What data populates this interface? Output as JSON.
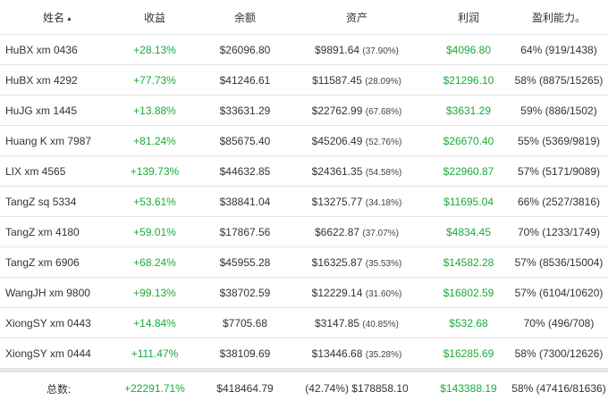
{
  "header": {
    "name": "姓名",
    "sort_icon": "▲",
    "gain": "收益",
    "balance": "余额",
    "asset": "资产",
    "profit": "利润",
    "ratio": "盈利能力。"
  },
  "rows": [
    {
      "name": "HuBX xm 0436",
      "gain": "+28.13%",
      "balance": "$26096.80",
      "asset": "$9891.64",
      "asset_pct": "(37.90%)",
      "profit": "$4096.80",
      "ratio": "64% (919/1438)"
    },
    {
      "name": "HuBX xm 4292",
      "gain": "+77.73%",
      "balance": "$41246.61",
      "asset": "$11587.45",
      "asset_pct": "(28.09%)",
      "profit": "$21296.10",
      "ratio": "58% (8875/15265)"
    },
    {
      "name": "HuJG xm 1445",
      "gain": "+13.88%",
      "balance": "$33631.29",
      "asset": "$22762.99",
      "asset_pct": "(67.68%)",
      "profit": "$3631.29",
      "ratio": "59% (886/1502)"
    },
    {
      "name": "Huang K xm 7987",
      "gain": "+81.24%",
      "balance": "$85675.40",
      "asset": "$45206.49",
      "asset_pct": "(52.76%)",
      "profit": "$26670.40",
      "ratio": "55% (5369/9819)"
    },
    {
      "name": "LIX xm 4565",
      "gain": "+139.73%",
      "balance": "$44632.85",
      "asset": "$24361.35",
      "asset_pct": "(54.58%)",
      "profit": "$22960.87",
      "ratio": "57% (5171/9089)"
    },
    {
      "name": "TangZ sq 5334",
      "gain": "+53.61%",
      "balance": "$38841.04",
      "asset": "$13275.77",
      "asset_pct": "(34.18%)",
      "profit": "$11695.04",
      "ratio": "66% (2527/3816)"
    },
    {
      "name": "TangZ xm 4180",
      "gain": "+59.01%",
      "balance": "$17867.56",
      "asset": "$6622.87",
      "asset_pct": "(37.07%)",
      "profit": "$4834.45",
      "ratio": "70% (1233/1749)"
    },
    {
      "name": "TangZ xm 6906",
      "gain": "+68.24%",
      "balance": "$45955.28",
      "asset": "$16325.87",
      "asset_pct": "(35.53%)",
      "profit": "$14582.28",
      "ratio": "57% (8536/15004)"
    },
    {
      "name": "WangJH xm 9800",
      "gain": "+99.13%",
      "balance": "$38702.59",
      "asset": "$12229.14",
      "asset_pct": "(31.60%)",
      "profit": "$16802.59",
      "ratio": "57% (6104/10620)"
    },
    {
      "name": "XiongSY xm 0443",
      "gain": "+14.84%",
      "balance": "$7705.68",
      "asset": "$3147.85",
      "asset_pct": "(40.85%)",
      "profit": "$532.68",
      "ratio": "70% (496/708)"
    },
    {
      "name": "XiongSY xm 0444",
      "gain": "+111.47%",
      "balance": "$38109.69",
      "asset": "$13446.68",
      "asset_pct": "(35.28%)",
      "profit": "$16285.69",
      "ratio": "58% (7300/12626)"
    }
  ],
  "total": {
    "label": "总数:",
    "gain": "+22291.71%",
    "balance": "$418464.79",
    "asset": "(42.74%) $178858.10",
    "profit": "$143388.19",
    "ratio": "58% (47416/81636)"
  },
  "colors": {
    "positive": "#1aaa3a",
    "border": "#e3e3e3"
  }
}
